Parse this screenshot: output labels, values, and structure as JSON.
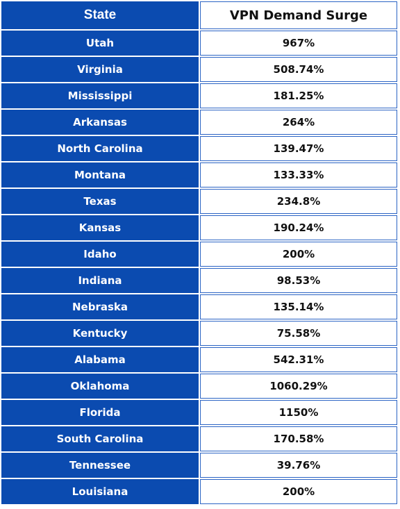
{
  "header": {
    "state": "State",
    "surge": "VPN Demand Surge"
  },
  "rows": [
    {
      "state": "Utah",
      "surge": "967%"
    },
    {
      "state": "Virginia",
      "surge": "508.74%"
    },
    {
      "state": "Mississippi",
      "surge": "181.25%"
    },
    {
      "state": "Arkansas",
      "surge": "264%"
    },
    {
      "state": "North Carolina",
      "surge": "139.47%"
    },
    {
      "state": "Montana",
      "surge": "133.33%"
    },
    {
      "state": "Texas",
      "surge": "234.8%"
    },
    {
      "state": "Kansas",
      "surge": "190.24%"
    },
    {
      "state": "Idaho",
      "surge": "200%"
    },
    {
      "state": "Indiana",
      "surge": "98.53%"
    },
    {
      "state": "Nebraska",
      "surge": "135.14%"
    },
    {
      "state": "Kentucky",
      "surge": "75.58%"
    },
    {
      "state": "Alabama",
      "surge": "542.31%"
    },
    {
      "state": "Oklahoma",
      "surge": "1060.29%"
    },
    {
      "state": "Florida",
      "surge": "1150%"
    },
    {
      "state": "South Carolina",
      "surge": "170.58%"
    },
    {
      "state": "Tennessee",
      "surge": "39.76%"
    },
    {
      "state": "Louisiana",
      "surge": "200%"
    }
  ],
  "colors": {
    "state_background": "#0b4bb0",
    "value_border": "#2a63c4"
  }
}
